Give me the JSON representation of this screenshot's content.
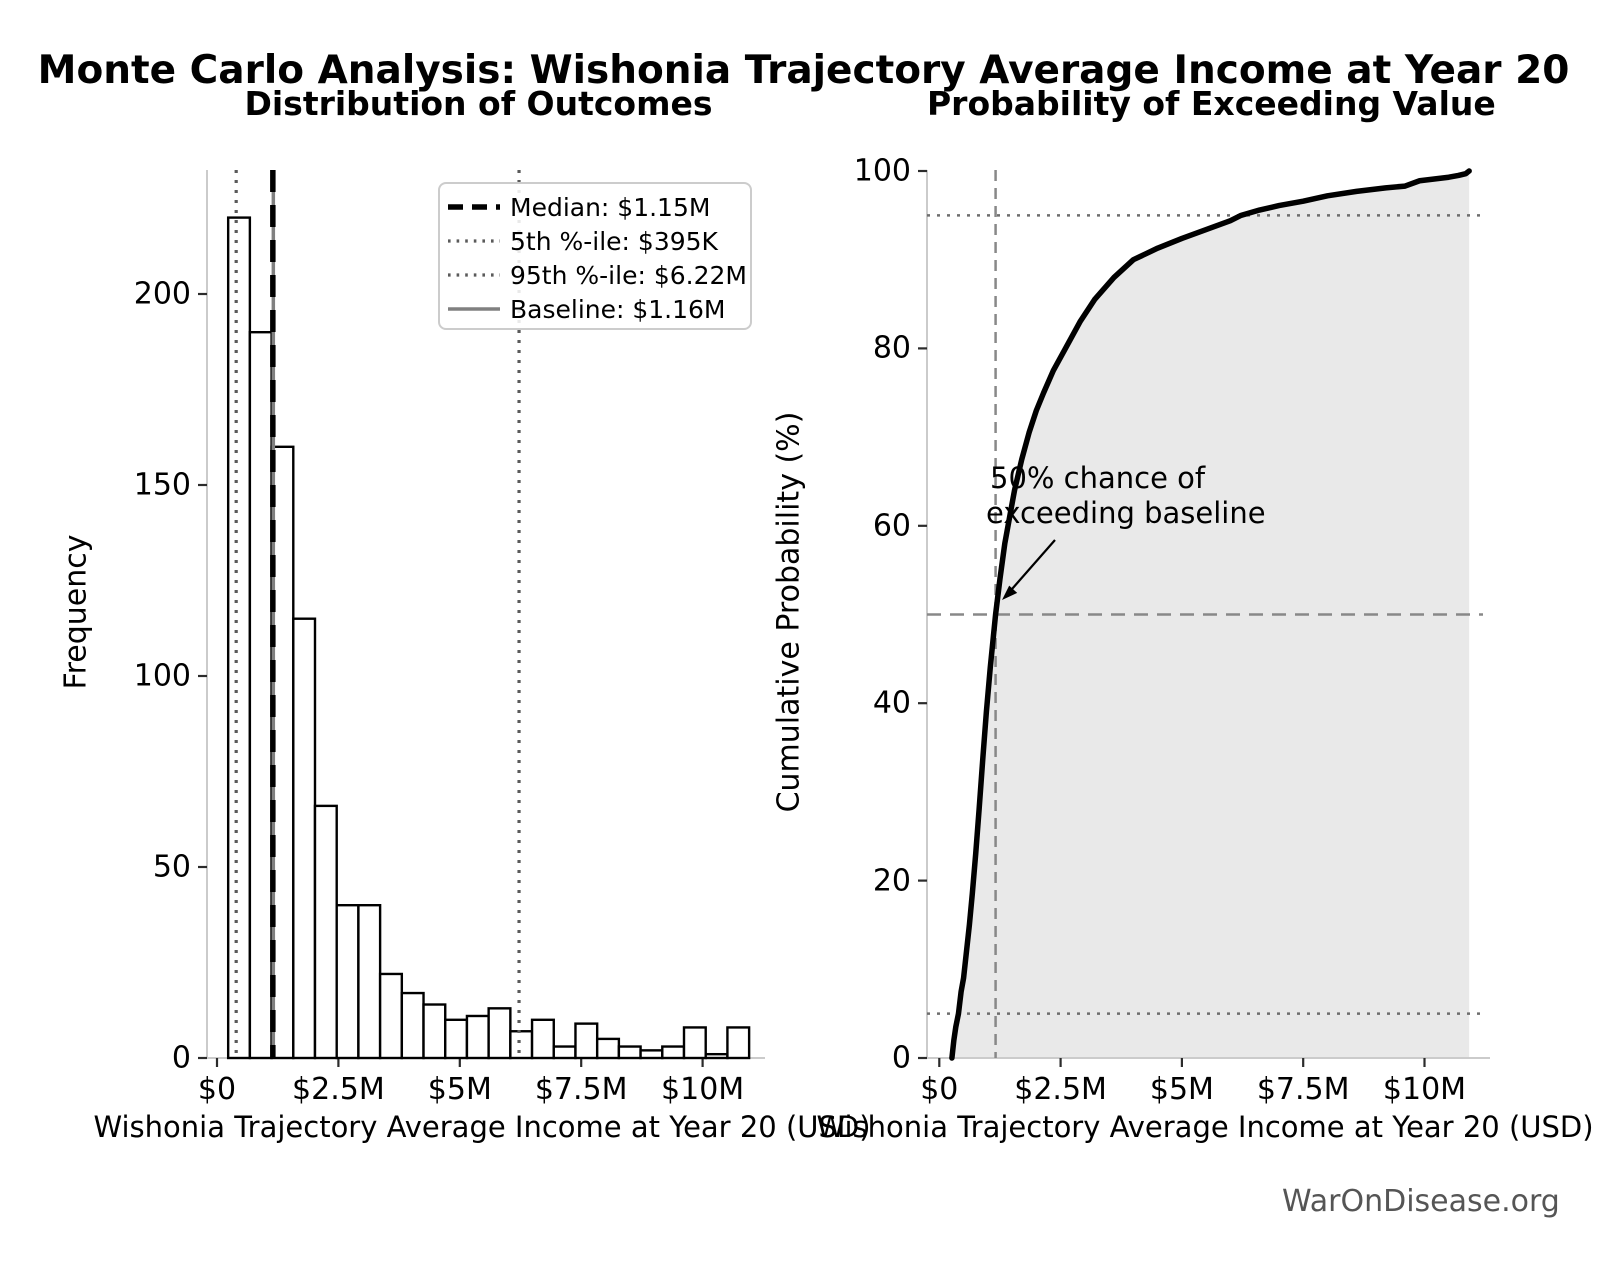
{
  "figure": {
    "title": "Monte Carlo Analysis: Wishonia Trajectory Average Income at Year 20",
    "footer": "WarOnDisease.org"
  },
  "colors": {
    "curve": "#000000",
    "fill_under_curve": "#e9e9e9",
    "reference_gray": "#808080",
    "dotted_gray": "#5a5a5a",
    "spine_gray": "#cbcbcb",
    "footer_text": "#555555",
    "bar_fill": "#ffffff",
    "bar_edge": "#000000"
  },
  "chart_data": [
    {
      "type": "bar",
      "subtype": "histogram",
      "title": "Distribution of Outcomes",
      "xlabel": "Wishonia Trajectory Average Income at Year 20 (USD)",
      "ylabel": "Frequency",
      "bin_start_musd": 0.23,
      "bin_width_musd": 0.447,
      "frequencies": [
        220,
        190,
        160,
        115,
        66,
        40,
        40,
        22,
        17,
        14,
        10,
        11,
        13,
        7,
        10,
        3,
        9,
        5,
        3,
        2,
        3,
        8,
        1,
        8
      ],
      "x_tick_values_musd": [
        0,
        2.5,
        5,
        7.5,
        10
      ],
      "x_tick_labels": [
        "$0",
        "$2.5M",
        "$5M",
        "$7.5M",
        "$10M"
      ],
      "y_tick_values": [
        0,
        50,
        100,
        150,
        200
      ],
      "y_tick_labels": [
        "0",
        "50",
        "100",
        "150",
        "200"
      ],
      "xlim_musd": [
        -0.21,
        11.28
      ],
      "ylim": [
        0,
        232
      ],
      "grid": false,
      "reference_lines": {
        "median_musd": 1.15,
        "p5_musd": 0.395,
        "p95_musd": 6.22,
        "baseline_musd": 1.16
      },
      "legend": {
        "position": "upper right",
        "entries": [
          {
            "label": "Median: $1.15M",
            "style": "dashed-black-thick"
          },
          {
            "label": "5th %-ile: $395K",
            "style": "dotted-gray"
          },
          {
            "label": "95th %-ile: $6.22M",
            "style": "dotted-gray"
          },
          {
            "label": "Baseline: $1.16M",
            "style": "solid-gray"
          }
        ]
      }
    },
    {
      "type": "line",
      "subtype": "cumulative-probability-curve",
      "title": "Probability of Exceeding Value",
      "xlabel": "Wishonia Trajectory Average Income at Year 20 (USD)",
      "ylabel": "Cumulative Probability (%)",
      "x_musd": [
        0.26,
        0.3,
        0.34,
        0.395,
        0.45,
        0.5,
        0.56,
        0.62,
        0.68,
        0.75,
        0.82,
        0.9,
        0.97,
        1.05,
        1.16,
        1.25,
        1.35,
        1.45,
        1.55,
        1.7,
        1.85,
        2.0,
        2.15,
        2.35,
        2.6,
        2.9,
        3.2,
        3.6,
        4.0,
        4.5,
        5.0,
        5.5,
        6.0,
        6.22,
        6.6,
        7.0,
        7.5,
        8.0,
        8.6,
        9.2,
        9.6,
        9.9,
        10.2,
        10.5,
        10.7,
        10.85,
        10.92
      ],
      "y_percent": [
        0,
        2,
        3.5,
        5,
        7.5,
        9,
        12,
        15,
        18.5,
        23,
        28,
        34,
        39,
        44,
        50,
        54,
        58,
        61,
        64,
        67.5,
        70.5,
        73,
        75,
        77.5,
        80,
        83,
        85.5,
        88,
        90,
        91.3,
        92.4,
        93.4,
        94.4,
        95,
        95.6,
        96.1,
        96.6,
        97.2,
        97.7,
        98.1,
        98.3,
        98.9,
        99.1,
        99.3,
        99.5,
        99.7,
        100
      ],
      "x_tick_values_musd": [
        0,
        2.5,
        5,
        7.5,
        10
      ],
      "x_tick_labels": [
        "$0",
        "$2.5M",
        "$5M",
        "$7.5M",
        "$10M"
      ],
      "y_tick_values": [
        0,
        20,
        40,
        60,
        80,
        100
      ],
      "y_tick_labels": [
        "0",
        "20",
        "40",
        "60",
        "80",
        "100"
      ],
      "xlim_musd": [
        -0.25,
        11.2
      ],
      "ylim": [
        0,
        100.3
      ],
      "grid": false,
      "fill": "under-curve",
      "reference_lines": {
        "baseline_vertical_musd": 1.16,
        "horizontal_dashed_percent": 50,
        "horizontal_dotted_percent": [
          5,
          95
        ]
      },
      "annotation": {
        "line1": "50% chance of",
        "line2": "exceeding baseline",
        "points_to": {
          "x_musd": 1.16,
          "y_percent": 50
        }
      }
    }
  ]
}
